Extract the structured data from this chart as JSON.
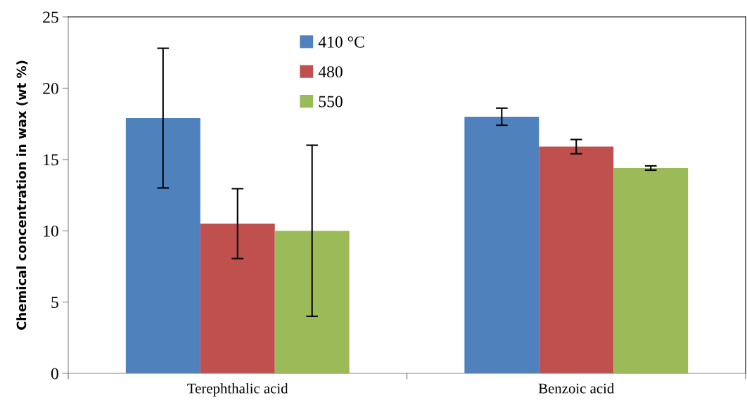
{
  "chart_data": {
    "type": "bar",
    "ylabel": "Chemical concentration in wax (wt %)",
    "categories": [
      "Terephthalic acid",
      "Benzoic acid"
    ],
    "series": [
      {
        "name": "410 °C",
        "color": "#4f81bd",
        "values": [
          17.9,
          18.0
        ],
        "errors": [
          4.9,
          0.6
        ]
      },
      {
        "name": "480",
        "color": "#c0504d",
        "values": [
          10.5,
          15.9
        ],
        "errors": [
          2.45,
          0.5
        ]
      },
      {
        "name": "550",
        "color": "#9bbb59",
        "values": [
          10.0,
          14.4
        ],
        "errors": [
          6.0,
          0.15
        ]
      }
    ],
    "ylim": [
      0,
      25
    ],
    "yticks": [
      0,
      5,
      10,
      15,
      20,
      25
    ],
    "grid": false,
    "legend": "top"
  }
}
